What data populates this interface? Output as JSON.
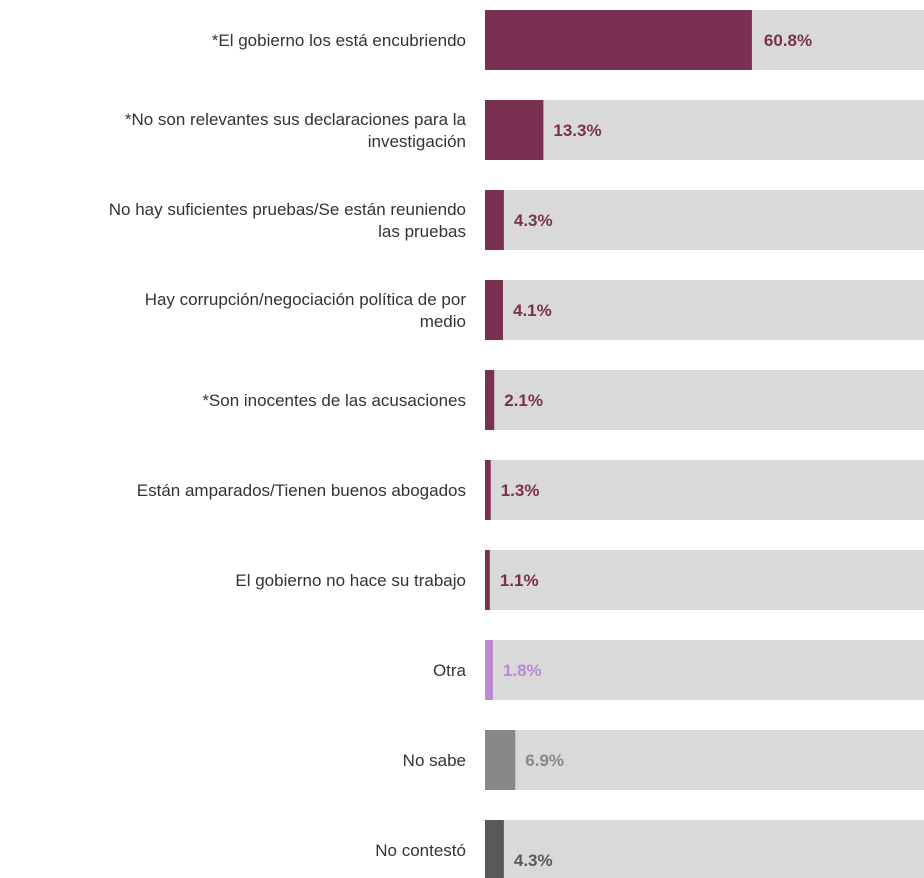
{
  "chart_data": {
    "type": "bar",
    "orientation": "horizontal",
    "xlim": [
      0,
      100
    ],
    "grid": false,
    "legend": "none",
    "categories": [
      [
        "*El gobierno los está encubriendo"
      ],
      [
        "*No son relevantes sus declaraciones para la",
        "investigación"
      ],
      [
        "No hay suficientes pruebas/Se están reuniendo",
        "las pruebas"
      ],
      [
        "Hay corrupción/negociación política de por",
        "medio"
      ],
      [
        "*Son inocentes de las acusaciones"
      ],
      [
        "Están amparados/Tienen buenos abogados"
      ],
      [
        "El gobierno no hace su trabajo"
      ],
      [
        "Otra"
      ],
      [
        "No sabe"
      ],
      [
        "No contestó"
      ]
    ],
    "values": [
      60.8,
      13.3,
      4.3,
      4.1,
      2.1,
      1.3,
      1.1,
      1.8,
      6.9,
      4.3
    ],
    "value_labels": [
      "60.8%",
      "13.3%",
      "4.3%",
      "4.1%",
      "2.1%",
      "1.3%",
      "1.1%",
      "1.8%",
      "6.9%",
      "4.3%"
    ],
    "bar_colors": [
      "#7a3050",
      "#7a3050",
      "#7a3050",
      "#7a3050",
      "#7a3050",
      "#7a3050",
      "#7a3050",
      "#b98ad2",
      "#888888",
      "#595959"
    ],
    "label_colors": [
      "#ffffff",
      "#7a3050",
      "#7a3050",
      "#7a3050",
      "#7a3050",
      "#7a3050",
      "#7a3050",
      "#b98ad2",
      "#888888",
      "#595959"
    ],
    "track_color": "#d9d9d9"
  }
}
